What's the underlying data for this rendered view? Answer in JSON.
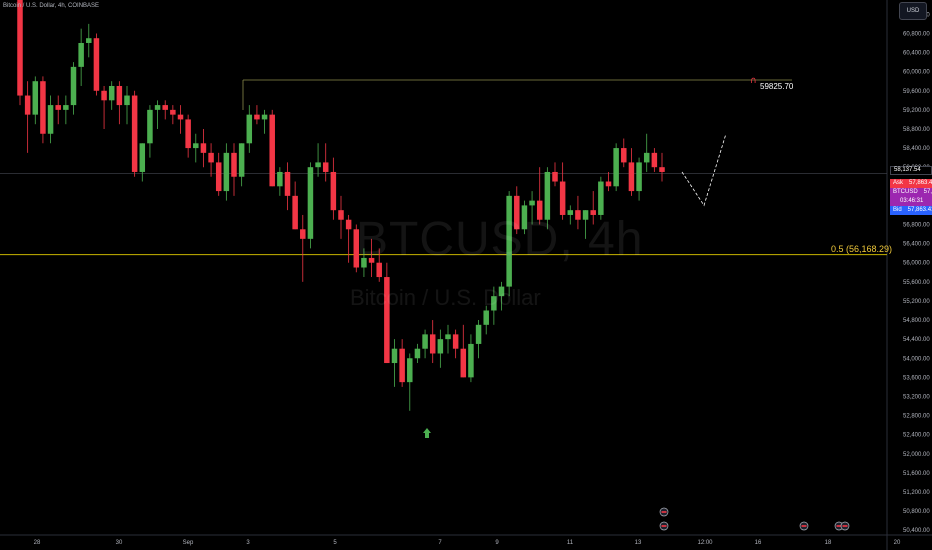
{
  "header": {
    "symbol_title": "Bitcoin / U.S. Dollar, 4h, COINBASE"
  },
  "watermark": {
    "ticker": "BTCUSD, 4h",
    "name": "Bitcoin / U.S. Dollar"
  },
  "toolbar": {
    "currency_button": "USD"
  },
  "price_tags": {
    "ask_label": "Ask",
    "ask_value": "57,863.42",
    "symbol_label": "BTCUSD",
    "symbol_value": "57,863.41",
    "countdown": "03:46:31",
    "bid_label": "Bid",
    "bid_value": "57,863.41",
    "top_value": "58,137.54"
  },
  "annotations": {
    "fib_label": "0.5 (56,168.29)",
    "alert_label": "59825.70"
  },
  "colors": {
    "up": "#26a69a",
    "up_bright": "#4caf50",
    "down": "#f23645",
    "fib": "#f0c93a"
  },
  "chart_data": {
    "type": "candlestick",
    "ylim": [
      50300,
      61500
    ],
    "y_ticks": [
      61200,
      60800,
      60400,
      60000,
      59600,
      59200,
      58800,
      58400,
      58000,
      57600,
      57200,
      56800,
      56400,
      56000,
      55600,
      55200,
      54800,
      54400,
      54000,
      53600,
      53200,
      52800,
      52400,
      52000,
      51600,
      51200,
      50800,
      50400
    ],
    "x_ticks": [
      "28",
      "30",
      "Sep",
      "3",
      "5",
      "7",
      "9",
      "11",
      "13",
      "12:00",
      "16",
      "18",
      "20"
    ],
    "horizontal_lines": [
      {
        "name": "fib-0.5",
        "value": 56168.29
      },
      {
        "name": "alert-level",
        "value": 59825.7
      },
      {
        "name": "current-price",
        "value": 57863.41
      }
    ],
    "candles": [
      [
        61700,
        61800,
        59300,
        59500
      ],
      [
        59500,
        59800,
        58300,
        59100
      ],
      [
        59100,
        59900,
        58900,
        59800
      ],
      [
        59800,
        59900,
        58500,
        58700
      ],
      [
        58700,
        59500,
        58500,
        59300
      ],
      [
        59300,
        59500,
        58900,
        59200
      ],
      [
        59200,
        59500,
        58900,
        59300
      ],
      [
        59300,
        60200,
        59100,
        60100
      ],
      [
        60100,
        60900,
        59700,
        60600
      ],
      [
        60600,
        61000,
        60300,
        60700
      ],
      [
        60700,
        60800,
        59500,
        59600
      ],
      [
        59600,
        59700,
        58800,
        59400
      ],
      [
        59400,
        59800,
        59200,
        59700
      ],
      [
        59700,
        59800,
        58900,
        59300
      ],
      [
        59300,
        59700,
        58900,
        59500
      ],
      [
        59500,
        59600,
        57800,
        57900
      ],
      [
        57900,
        58500,
        57700,
        58500
      ],
      [
        58500,
        59300,
        58200,
        59200
      ],
      [
        59200,
        59400,
        58800,
        59300
      ],
      [
        59300,
        59400,
        59000,
        59200
      ],
      [
        59200,
        59300,
        58900,
        59100
      ],
      [
        59100,
        59300,
        58700,
        59000
      ],
      [
        59000,
        59100,
        58200,
        58400
      ],
      [
        58400,
        58700,
        58100,
        58500
      ],
      [
        58500,
        58800,
        58000,
        58300
      ],
      [
        58300,
        58500,
        57800,
        58100
      ],
      [
        58100,
        58300,
        57400,
        57500
      ],
      [
        57500,
        58500,
        57300,
        58300
      ],
      [
        58300,
        58500,
        57400,
        57800
      ],
      [
        57800,
        58500,
        57600,
        58500
      ],
      [
        58500,
        59300,
        58300,
        59100
      ],
      [
        59100,
        59300,
        58900,
        59000
      ],
      [
        59000,
        59200,
        58700,
        59100
      ],
      [
        59100,
        59200,
        57600,
        57600
      ],
      [
        57600,
        58000,
        57400,
        57900
      ],
      [
        57900,
        58100,
        57100,
        57400
      ],
      [
        57400,
        57700,
        56700,
        56700
      ],
      [
        56700,
        57000,
        55600,
        56500
      ],
      [
        56500,
        58100,
        56300,
        58000
      ],
      [
        58000,
        58500,
        57800,
        58100
      ],
      [
        58100,
        58500,
        57700,
        57900
      ],
      [
        57900,
        58200,
        56900,
        57100
      ],
      [
        57100,
        57400,
        56500,
        56900
      ],
      [
        56900,
        57000,
        56000,
        56700
      ],
      [
        56700,
        56800,
        55800,
        55900
      ],
      [
        55900,
        56300,
        55700,
        56100
      ],
      [
        56100,
        56500,
        55700,
        56000
      ],
      [
        56000,
        56300,
        55600,
        55700
      ],
      [
        55700,
        56000,
        53900,
        53900
      ],
      [
        53900,
        54400,
        53400,
        54200
      ],
      [
        54200,
        54400,
        53400,
        53500
      ],
      [
        53500,
        54100,
        52900,
        54000
      ],
      [
        54000,
        54300,
        53900,
        54200
      ],
      [
        54200,
        54600,
        54000,
        54500
      ],
      [
        54500,
        54800,
        53900,
        54100
      ],
      [
        54100,
        54600,
        53800,
        54400
      ],
      [
        54400,
        54700,
        54100,
        54500
      ],
      [
        54500,
        54600,
        54000,
        54200
      ],
      [
        54200,
        54700,
        53600,
        53600
      ],
      [
        53600,
        54500,
        53500,
        54300
      ],
      [
        54300,
        54800,
        54000,
        54700
      ],
      [
        54700,
        55100,
        54500,
        55000
      ],
      [
        55000,
        55500,
        54700,
        55300
      ],
      [
        55300,
        55600,
        55000,
        55500
      ],
      [
        55500,
        57500,
        55300,
        57400
      ],
      [
        57400,
        57600,
        56600,
        56700
      ],
      [
        56700,
        57300,
        56600,
        57200
      ],
      [
        57200,
        57500,
        56800,
        57300
      ],
      [
        57300,
        58000,
        56800,
        56900
      ],
      [
        56900,
        58000,
        56700,
        57900
      ],
      [
        57900,
        58100,
        57600,
        57700
      ],
      [
        57700,
        58100,
        56900,
        57000
      ],
      [
        57000,
        57200,
        56800,
        57100
      ],
      [
        57100,
        57400,
        56700,
        56900
      ],
      [
        56900,
        57100,
        56500,
        57100
      ],
      [
        57100,
        57500,
        56800,
        57000
      ],
      [
        57000,
        57800,
        56900,
        57700
      ],
      [
        57700,
        57900,
        57500,
        57600
      ],
      [
        57600,
        58500,
        57500,
        58400
      ],
      [
        58400,
        58600,
        58000,
        58100
      ],
      [
        58100,
        58400,
        57400,
        57500
      ],
      [
        57500,
        58200,
        57300,
        58100
      ],
      [
        58100,
        58700,
        57900,
        58300
      ],
      [
        58300,
        58400,
        57900,
        58000
      ],
      [
        58000,
        58300,
        57700,
        57900
      ]
    ],
    "volume_markers": [],
    "projection": [
      [
        57900,
        0
      ],
      [
        57200,
        1
      ],
      [
        58700,
        2
      ]
    ]
  }
}
